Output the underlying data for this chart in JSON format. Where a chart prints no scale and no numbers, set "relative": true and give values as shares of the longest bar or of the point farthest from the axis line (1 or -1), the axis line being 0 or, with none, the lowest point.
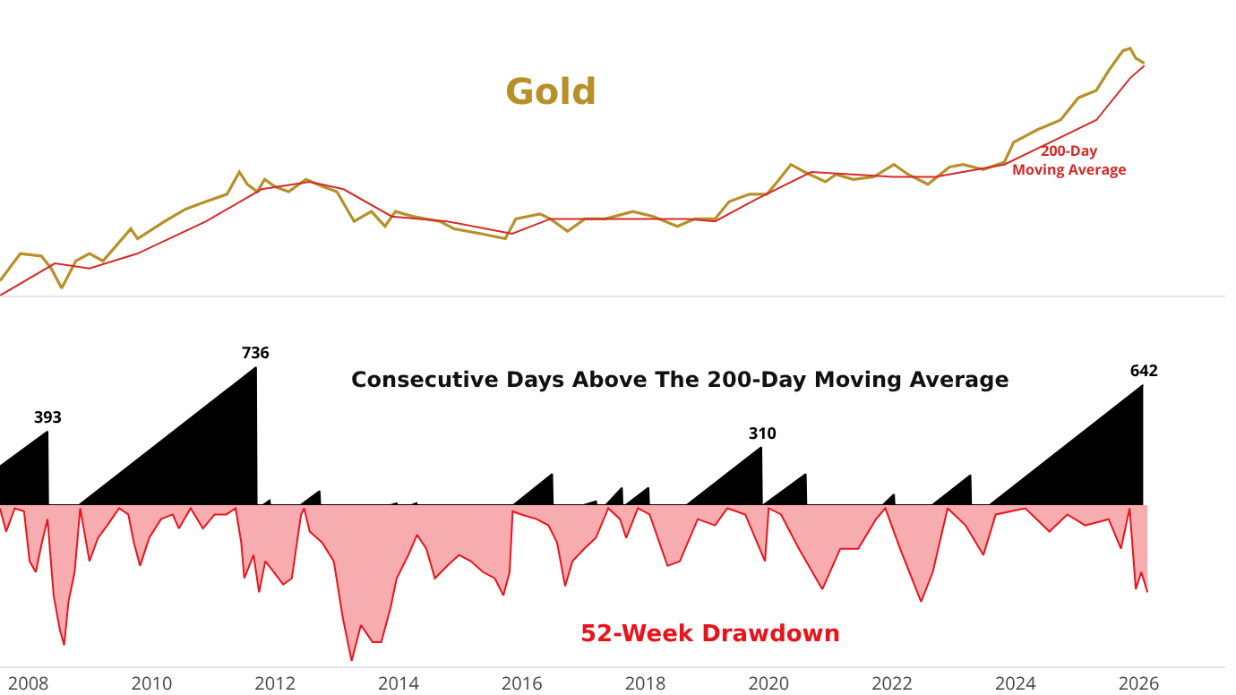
{
  "chart_data": [
    {
      "type": "line",
      "title": "Gold",
      "relative": true,
      "xlim": [
        2007.54,
        2027.4
      ],
      "tick_labels": false,
      "series": [
        {
          "color": "#b8902a",
          "x": [
            2007.54,
            2007.87,
            2008.21,
            2008.37,
            2008.54,
            2008.77,
            2008.99,
            2009.21,
            2009.66,
            2009.77,
            2010.21,
            2010.55,
            2010.88,
            2011.22,
            2011.42,
            2011.55,
            2011.71,
            2011.83,
            2012.0,
            2012.22,
            2012.5,
            2012.78,
            2013.0,
            2013.28,
            2013.56,
            2013.78,
            2013.95,
            2014.23,
            2014.67,
            2014.9,
            2015.34,
            2015.73,
            2015.9,
            2016.29,
            2016.46,
            2016.74,
            2017.02,
            2017.35,
            2017.8,
            2018.13,
            2018.52,
            2018.8,
            2019.13,
            2019.36,
            2019.69,
            2019.97,
            2020.14,
            2020.36,
            2020.58,
            2020.92,
            2021.09,
            2021.37,
            2021.7,
            2022.03,
            2022.26,
            2022.58,
            2022.93,
            2023.15,
            2023.48,
            2023.82,
            2023.97,
            2024.35,
            2024.73,
            2025.02,
            2025.31,
            2025.51,
            2025.74,
            2025.86,
            2025.95,
            2026.09
          ],
          "values": [
            0.06,
            0.17,
            0.16,
            0.11,
            0.03,
            0.14,
            0.17,
            0.14,
            0.27,
            0.23,
            0.3,
            0.35,
            0.38,
            0.41,
            0.5,
            0.45,
            0.42,
            0.47,
            0.44,
            0.42,
            0.47,
            0.44,
            0.42,
            0.3,
            0.34,
            0.28,
            0.34,
            0.32,
            0.3,
            0.27,
            0.25,
            0.23,
            0.31,
            0.33,
            0.31,
            0.26,
            0.31,
            0.31,
            0.34,
            0.32,
            0.28,
            0.31,
            0.31,
            0.38,
            0.41,
            0.41,
            0.46,
            0.53,
            0.5,
            0.46,
            0.49,
            0.47,
            0.48,
            0.53,
            0.49,
            0.45,
            0.52,
            0.53,
            0.51,
            0.54,
            0.62,
            0.67,
            0.71,
            0.8,
            0.83,
            0.91,
            0.99,
            1,
            0.96,
            0.94
          ]
        },
        {
          "name": "200-Day Moving Average",
          "color": "#d42a2a",
          "x": [
            2007.54,
            2008.43,
            2008.99,
            2009.77,
            2010.88,
            2011.78,
            2012.56,
            2013.11,
            2013.89,
            2014.79,
            2015.84,
            2016.46,
            2017.57,
            2018.69,
            2019.13,
            2019.8,
            2020.69,
            2022.03,
            2022.7,
            2023.82,
            2024.73,
            2025.31,
            2025.86,
            2026.09
          ],
          "values": [
            0,
            0.13,
            0.11,
            0.17,
            0.3,
            0.43,
            0.46,
            0.43,
            0.32,
            0.3,
            0.25,
            0.31,
            0.31,
            0.31,
            0.3,
            0.39,
            0.5,
            0.48,
            0.48,
            0.53,
            0.64,
            0.71,
            0.88,
            0.93
          ]
        }
      ]
    },
    {
      "type": "area",
      "title": "Consecutive Days Above The 200-Day Moving Average",
      "xlim": [
        2007.54,
        2027.4
      ],
      "ylim": [
        0,
        880
      ],
      "tick_labels": false,
      "series": [
        {
          "color": "#000000",
          "x": [
            2007.54,
            2008.31,
            2008.32,
            2008.82,
            2011.69,
            2011.7,
            2011.8,
            2011.91,
            2011.92,
            2012.41,
            2012.72,
            2012.73,
            2013.87,
            2013.97,
            2013.98,
            2014.21,
            2014.29,
            2014.3,
            2015.86,
            2016.49,
            2016.5,
            2017.0,
            2017.2,
            2017.21,
            2017.36,
            2017.62,
            2017.63,
            2017.68,
            2018.05,
            2018.06,
            2018.67,
            2019.88,
            2019.89,
            2019.91,
            2020.6,
            2020.61,
            2021.85,
            2022.03,
            2022.04,
            2022.65,
            2023.27,
            2023.28,
            2023.58,
            2026.07
          ],
          "values": [
            207,
            393,
            0,
            0,
            736,
            0,
            0,
            25,
            0,
            0,
            75,
            0,
            0,
            10,
            0,
            0,
            10,
            0,
            0,
            166,
            0,
            0,
            20,
            0,
            0,
            93,
            0,
            0,
            93,
            0,
            0,
            310,
            0,
            0,
            166,
            0,
            0,
            57,
            0,
            0,
            160,
            0,
            0,
            642
          ],
          "value_labels": [
            null,
            "393",
            null,
            null,
            "736",
            null,
            null,
            null,
            null,
            null,
            null,
            null,
            null,
            null,
            null,
            null,
            null,
            null,
            null,
            null,
            null,
            null,
            null,
            null,
            null,
            null,
            null,
            null,
            null,
            null,
            null,
            "310",
            null,
            null,
            null,
            null,
            null,
            null,
            null,
            null,
            null,
            null,
            null,
            "642"
          ]
        }
      ]
    },
    {
      "type": "area",
      "title": "52-Week Drawdown",
      "relative": true,
      "xlim": [
        2007.54,
        2027.4
      ],
      "xticks": [
        2008,
        2010,
        2012,
        2014,
        2016,
        2018,
        2020,
        2022,
        2024,
        2026
      ],
      "tick_labels": "x",
      "series": [
        {
          "color": "#e8141c",
          "x": [
            2007.54,
            2007.64,
            2007.78,
            2007.93,
            2008.02,
            2008.12,
            2008.22,
            2008.31,
            2008.41,
            2008.51,
            2008.58,
            2008.65,
            2008.75,
            2008.84,
            2008.99,
            2009.13,
            2009.28,
            2009.47,
            2009.62,
            2009.71,
            2009.81,
            2009.96,
            2010.15,
            2010.34,
            2010.44,
            2010.63,
            2010.83,
            2011.02,
            2011.21,
            2011.36,
            2011.45,
            2011.5,
            2011.65,
            2011.74,
            2011.84,
            2011.98,
            2012.13,
            2012.27,
            2012.42,
            2012.47,
            2012.56,
            2012.76,
            2012.95,
            2013.1,
            2013.24,
            2013.39,
            2013.58,
            2013.72,
            2013.87,
            2013.97,
            2014.16,
            2014.3,
            2014.45,
            2014.59,
            2014.79,
            2014.98,
            2015.17,
            2015.37,
            2015.56,
            2015.7,
            2015.8,
            2015.85,
            2015.99,
            2016.24,
            2016.43,
            2016.57,
            2016.7,
            2016.82,
            2017.01,
            2017.2,
            2017.4,
            2017.59,
            2017.69,
            2017.88,
            2018.07,
            2018.36,
            2018.56,
            2018.85,
            2019.13,
            2019.33,
            2019.62,
            2019.94,
            2020.0,
            2020.2,
            2020.49,
            2020.87,
            2021.16,
            2021.45,
            2021.74,
            2021.89,
            2022.13,
            2022.47,
            2022.66,
            2022.9,
            2023.19,
            2023.48,
            2023.68,
            2024.16,
            2024.55,
            2024.84,
            2025.13,
            2025.51,
            2025.71,
            2025.85,
            2025.95,
            2026.04,
            2026.14
          ],
          "values": [
            -0.02,
            -0.17,
            -0.02,
            -0.04,
            -0.36,
            -0.43,
            -0.24,
            -0.09,
            -0.58,
            -0.8,
            -0.9,
            -0.62,
            -0.43,
            -0.02,
            -0.36,
            -0.21,
            -0.13,
            -0.02,
            -0.06,
            -0.24,
            -0.39,
            -0.21,
            -0.09,
            -0.06,
            -0.15,
            -0.02,
            -0.15,
            -0.06,
            -0.06,
            -0.02,
            -0.24,
            -0.47,
            -0.32,
            -0.56,
            -0.36,
            -0.43,
            -0.51,
            -0.47,
            -0.06,
            -0.02,
            -0.17,
            -0.24,
            -0.36,
            -0.73,
            -1,
            -0.77,
            -0.88,
            -0.88,
            -0.66,
            -0.47,
            -0.32,
            -0.19,
            -0.28,
            -0.47,
            -0.39,
            -0.32,
            -0.36,
            -0.43,
            -0.47,
            -0.58,
            -0.43,
            -0.04,
            -0.06,
            -0.09,
            -0.13,
            -0.24,
            -0.52,
            -0.36,
            -0.28,
            -0.21,
            -0.02,
            -0.09,
            -0.21,
            -0.02,
            -0.06,
            -0.39,
            -0.36,
            -0.09,
            -0.13,
            -0.02,
            -0.06,
            -0.36,
            -0.02,
            -0.06,
            -0.28,
            -0.54,
            -0.28,
            -0.28,
            -0.09,
            -0.02,
            -0.28,
            -0.62,
            -0.43,
            -0.02,
            -0.13,
            -0.32,
            -0.06,
            -0.02,
            -0.17,
            -0.06,
            -0.13,
            -0.09,
            -0.28,
            -0.02,
            -0.54,
            -0.43,
            -0.56
          ]
        }
      ]
    }
  ]
}
